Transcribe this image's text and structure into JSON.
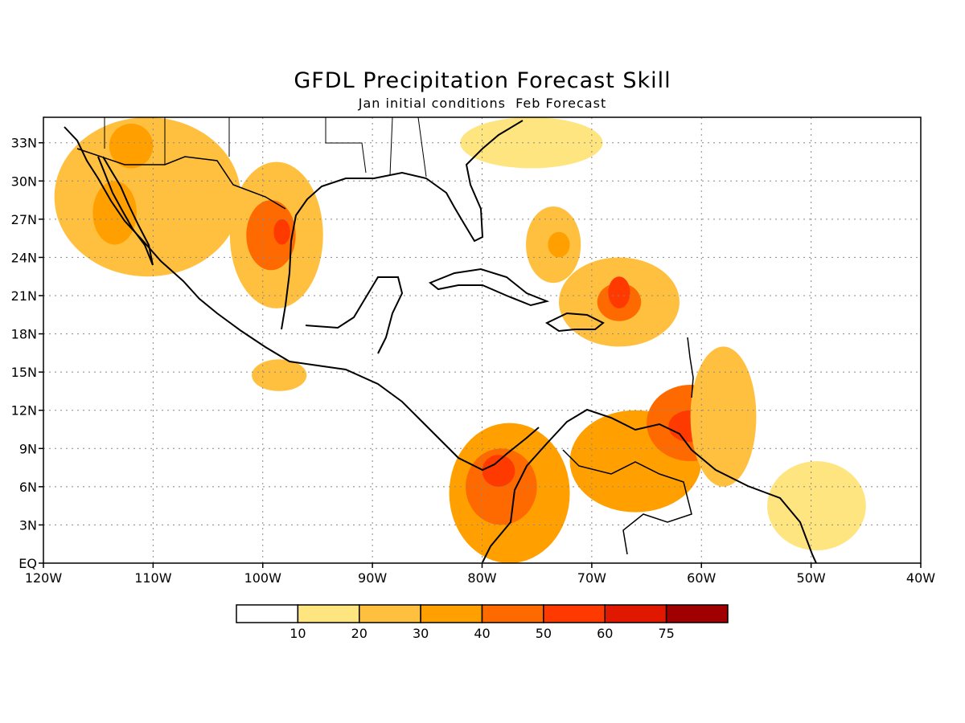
{
  "title": "GFDL Precipitation Forecast Skill",
  "subtitle": "Jan initial conditions  Feb Forecast",
  "map": {
    "lon_range": [
      -120,
      -40
    ],
    "lat_range": [
      0,
      35
    ],
    "grid": "dotted",
    "x_ticks": [
      {
        "lon": -120,
        "label": "120W"
      },
      {
        "lon": -110,
        "label": "110W"
      },
      {
        "lon": -100,
        "label": "100W"
      },
      {
        "lon": -90,
        "label": "90W"
      },
      {
        "lon": -80,
        "label": "80W"
      },
      {
        "lon": -70,
        "label": "70W"
      },
      {
        "lon": -60,
        "label": "60W"
      },
      {
        "lon": -50,
        "label": "50W"
      },
      {
        "lon": -40,
        "label": "40W"
      }
    ],
    "y_ticks": [
      {
        "lat": 0,
        "label": "EQ"
      },
      {
        "lat": 3,
        "label": "3N"
      },
      {
        "lat": 6,
        "label": "6N"
      },
      {
        "lat": 9,
        "label": "9N"
      },
      {
        "lat": 12,
        "label": "12N"
      },
      {
        "lat": 15,
        "label": "15N"
      },
      {
        "lat": 18,
        "label": "18N"
      },
      {
        "lat": 21,
        "label": "21N"
      },
      {
        "lat": 24,
        "label": "24N"
      },
      {
        "lat": 27,
        "label": "27N"
      },
      {
        "lat": 30,
        "label": "30N"
      },
      {
        "lat": 33,
        "label": "33N"
      }
    ]
  },
  "colorbar": {
    "bins": [
      {
        "color": "#ffffff"
      },
      {
        "color": "#ffe57f"
      },
      {
        "color": "#ffc040"
      },
      {
        "color": "#ffa000"
      },
      {
        "color": "#ff6a00"
      },
      {
        "color": "#ff3a00"
      },
      {
        "color": "#e01800"
      },
      {
        "color": "#a00000"
      }
    ],
    "labels": [
      "10",
      "20",
      "30",
      "40",
      "50",
      "60",
      "75"
    ]
  },
  "skill_regions": [
    {
      "name": "nw-mexico-sw-us",
      "lon": [
        -119,
        -102
      ],
      "lat": [
        22.5,
        35
      ],
      "level": 2
    },
    {
      "name": "gulf-of-california",
      "lon": [
        -115.5,
        -111.5
      ],
      "lat": [
        25,
        30
      ],
      "level": 3
    },
    {
      "name": "nw-core",
      "lon": [
        -114,
        -110
      ],
      "lat": [
        31,
        34.5
      ],
      "level": 3
    },
    {
      "name": "texas",
      "lon": [
        -103,
        -94.5
      ],
      "lat": [
        20,
        31.5
      ],
      "level": 2
    },
    {
      "name": "texas-core",
      "lon": [
        -101.5,
        -97
      ],
      "lat": [
        23,
        28.5
      ],
      "level": 4
    },
    {
      "name": "texas-peak",
      "lon": [
        -99,
        -97.5
      ],
      "lat": [
        25,
        27
      ],
      "level": 5
    },
    {
      "name": "bahamas",
      "lon": [
        -76,
        -71
      ],
      "lat": [
        22,
        28
      ],
      "level": 2
    },
    {
      "name": "bahamas-core",
      "lon": [
        -74,
        -72
      ],
      "lat": [
        24,
        26
      ],
      "level": 3
    },
    {
      "name": "hispaniola-atlantic",
      "lon": [
        -73,
        -62
      ],
      "lat": [
        17,
        24
      ],
      "level": 2
    },
    {
      "name": "hispaniola-core",
      "lon": [
        -69.5,
        -65.5
      ],
      "lat": [
        19,
        22
      ],
      "level": 4
    },
    {
      "name": "hispaniola-peak",
      "lon": [
        -68.5,
        -66.5
      ],
      "lat": [
        20,
        22.5
      ],
      "level": 5
    },
    {
      "name": "panama-colombia",
      "lon": [
        -83,
        -72
      ],
      "lat": [
        0,
        11
      ],
      "level": 3
    },
    {
      "name": "panama-colombia-core",
      "lon": [
        -81.5,
        -75
      ],
      "lat": [
        3,
        9
      ],
      "level": 4
    },
    {
      "name": "panama-peak",
      "lon": [
        -80,
        -77
      ],
      "lat": [
        6,
        8.5
      ],
      "level": 5
    },
    {
      "name": "venezuela",
      "lon": [
        -72,
        -60
      ],
      "lat": [
        4,
        12
      ],
      "level": 3
    },
    {
      "name": "trinidad",
      "lon": [
        -65,
        -57
      ],
      "lat": [
        8,
        14
      ],
      "level": 4
    },
    {
      "name": "trinidad-peak",
      "lon": [
        -63,
        -59
      ],
      "lat": [
        9.5,
        12
      ],
      "level": 5
    },
    {
      "name": "lesser-antilles",
      "lon": [
        -61,
        -55
      ],
      "lat": [
        6,
        17
      ],
      "level": 2
    },
    {
      "name": "guianas",
      "lon": [
        -54,
        -45
      ],
      "lat": [
        1,
        8
      ],
      "level": 1
    },
    {
      "name": "eastern-pacific",
      "lon": [
        -101,
        -96
      ],
      "lat": [
        13.5,
        16
      ],
      "level": 2
    },
    {
      "name": "southeast-us",
      "lon": [
        -82,
        -69
      ],
      "lat": [
        31,
        35
      ],
      "level": 1
    }
  ]
}
